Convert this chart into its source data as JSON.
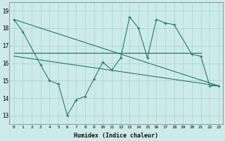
{
  "xlabel": "Humidex (Indice chaleur)",
  "bg_color": "#cdeaea",
  "grid_color": "#aed4d4",
  "line_color": "#1e7b6e",
  "x_ticks": [
    0,
    1,
    2,
    3,
    4,
    5,
    6,
    7,
    8,
    9,
    10,
    11,
    12,
    13,
    14,
    15,
    16,
    17,
    18,
    19,
    20,
    21,
    22,
    23
  ],
  "ylim": [
    12.5,
    19.5
  ],
  "xlim": [
    -0.5,
    23.5
  ],
  "yticks": [
    13,
    14,
    15,
    16,
    17,
    18,
    19
  ],
  "diag_line_x": [
    0,
    23
  ],
  "diag_line_y": [
    18.5,
    14.7
  ],
  "flat_line1_x": [
    0,
    21
  ],
  "flat_line1_y": [
    16.6,
    16.6
  ],
  "flat_line2_x": [
    0,
    23
  ],
  "flat_line2_y": [
    16.4,
    14.7
  ],
  "jagged_x": [
    0,
    1,
    3,
    4,
    5,
    6,
    7,
    8,
    9,
    10,
    11,
    12,
    13,
    14,
    15,
    16,
    17,
    18,
    20,
    21,
    22,
    23
  ],
  "jagged_y": [
    18.5,
    17.8,
    15.9,
    15.0,
    14.8,
    13.0,
    13.9,
    14.1,
    15.1,
    16.05,
    15.6,
    16.3,
    18.65,
    18.0,
    16.3,
    18.5,
    18.3,
    18.2,
    16.5,
    16.4,
    14.7,
    14.7
  ]
}
